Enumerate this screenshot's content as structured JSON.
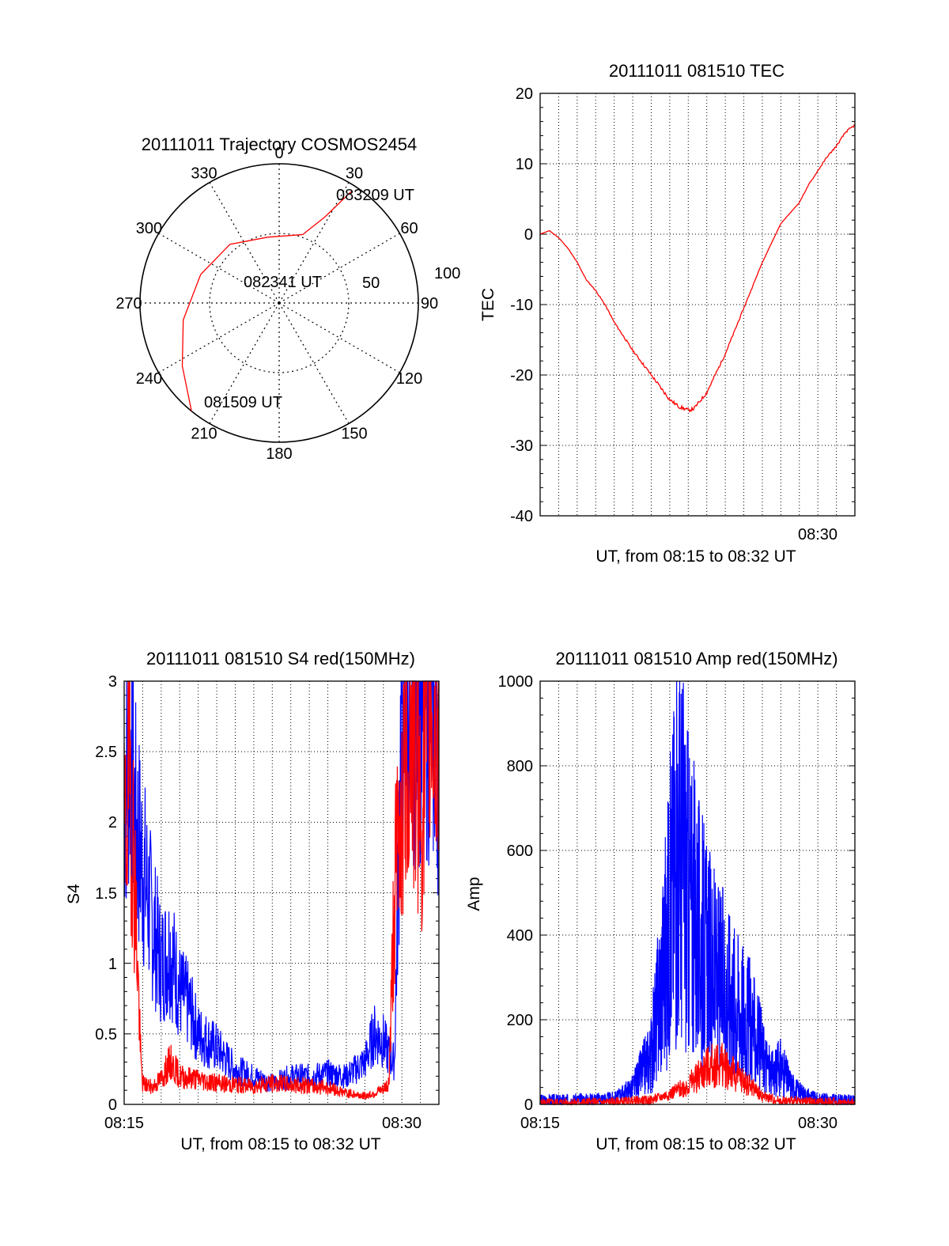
{
  "colors": {
    "red": "#ff0000",
    "blue": "#0000ff",
    "axis": "#000000",
    "grid": "#000000"
  },
  "trajectory": {
    "title": "20111011 Trajectory COSMOS2454",
    "azimuth_labels": [
      "0",
      "30",
      "60",
      "90",
      "120",
      "150",
      "180",
      "210",
      "240",
      "270",
      "300",
      "330"
    ],
    "elevation_labels": [
      "50",
      "100"
    ],
    "times": [
      "083209 UT",
      "082341 UT",
      "081509 UT"
    ],
    "chart_data": {
      "type": "scatter",
      "coordinates": "polar (azimuth degrees clockwise from north, radial distance in display units 0-100)",
      "series": [
        {
          "color": "red",
          "points": [
            {
              "az": 33,
              "r": 96
            },
            {
              "az": 28,
              "r": 70
            },
            {
              "az": 19,
              "r": 52
            },
            {
              "az": 350,
              "r": 48
            },
            {
              "az": 320,
              "r": 55
            },
            {
              "az": 290,
              "r": 60
            },
            {
              "az": 260,
              "r": 70
            },
            {
              "az": 237,
              "r": 83
            },
            {
              "az": 219,
              "r": 100
            }
          ]
        }
      ],
      "grid": true
    }
  },
  "tec": {
    "title": "20111011 081510 TEC",
    "ylabel": "TEC",
    "xlabel": "UT, from 08:15 to 08:32 UT",
    "yticks": [
      "20",
      "10",
      "0",
      "-10",
      "-20",
      "-30",
      "-40"
    ],
    "xtick_label": "08:30",
    "chart_data": {
      "type": "line",
      "xlim": [
        0,
        17
      ],
      "ylim": [
        -40,
        20
      ],
      "x_unit": "minutes after 08:15 UT",
      "grid": true,
      "series": [
        {
          "color": "red",
          "x": [
            0,
            0.5,
            1,
            1.5,
            2,
            2.5,
            3,
            3.5,
            4,
            5,
            6,
            7,
            7.5,
            8,
            8.3,
            9,
            10,
            11,
            12,
            13,
            14,
            14.5,
            15,
            15.5,
            16,
            16.5,
            17
          ],
          "y": [
            0,
            0.5,
            -0.5,
            -2,
            -4,
            -6.5,
            -8,
            -10,
            -12.5,
            -16.5,
            -20,
            -23.5,
            -24.5,
            -25,
            -24.8,
            -22.5,
            -17,
            -10.5,
            -4,
            1.5,
            4.5,
            7,
            9,
            11,
            12.5,
            14.5,
            15.5
          ]
        }
      ]
    }
  },
  "s4": {
    "title": "20111011 081510 S4 red(150MHz)",
    "ylabel": "S4",
    "xlabel": "UT, from 08:15 to 08:32 UT",
    "yticks": [
      "3",
      "2.5",
      "2",
      "1.5",
      "1",
      "0.5",
      "0"
    ],
    "xtick_labels": [
      "08:15",
      "08:30"
    ],
    "chart_data": {
      "type": "line",
      "xlim": [
        0,
        17
      ],
      "ylim": [
        0,
        3
      ],
      "x_unit": "minutes after 08:15 UT",
      "grid": true,
      "series": [
        {
          "color": "blue",
          "x": [
            0,
            0.3,
            0.6,
            1,
            1.5,
            2,
            2.5,
            3,
            3.5,
            4,
            5,
            6,
            7,
            8,
            9,
            10,
            11,
            12,
            13,
            13.5,
            14,
            14.3,
            14.6,
            15,
            15.5,
            16,
            16.5,
            17
          ],
          "y": [
            2.2,
            2.6,
            2.0,
            1.7,
            1.3,
            1.0,
            1.1,
            0.8,
            0.7,
            0.5,
            0.4,
            0.25,
            0.2,
            0.15,
            0.2,
            0.2,
            0.22,
            0.2,
            0.3,
            0.5,
            0.45,
            0.35,
            0.3,
            3.0,
            3.0,
            3.0,
            3.0,
            2.6
          ]
        },
        {
          "color": "red",
          "x": [
            0,
            0.3,
            0.6,
            0.9,
            1,
            1.5,
            2,
            2.5,
            3,
            4,
            5,
            6,
            7,
            8,
            9,
            10,
            11,
            12,
            13,
            14,
            14.3,
            14.6,
            15,
            15.5,
            16,
            16.5,
            17
          ],
          "y": [
            1.8,
            2.4,
            1.5,
            0.3,
            0.15,
            0.12,
            0.18,
            0.3,
            0.2,
            0.18,
            0.15,
            0.14,
            0.13,
            0.15,
            0.14,
            0.13,
            0.12,
            0.08,
            0.06,
            0.1,
            0.15,
            1.5,
            2.2,
            2.8,
            2.0,
            3.0,
            2.5
          ]
        }
      ]
    }
  },
  "amp": {
    "title": "20111011 081510 Amp red(150MHz)",
    "ylabel": "Amp",
    "xlabel": "UT, from 08:15 to 08:32 UT",
    "yticks": [
      "1000",
      "800",
      "600",
      "400",
      "200",
      "0"
    ],
    "xtick_labels": [
      "08:15",
      "08:30"
    ],
    "chart_data": {
      "type": "line",
      "xlim": [
        0,
        17
      ],
      "ylim": [
        0,
        1000
      ],
      "x_unit": "minutes after 08:15 UT",
      "grid": true,
      "series": [
        {
          "color": "blue",
          "x": [
            0,
            2,
            4,
            5,
            6,
            6.5,
            7,
            7.3,
            7.6,
            8,
            8.5,
            9,
            9.5,
            10,
            10.5,
            11,
            11.5,
            12,
            12.5,
            13,
            13.5,
            14,
            15,
            17
          ],
          "y": [
            8,
            10,
            15,
            40,
            120,
            280,
            450,
            600,
            620,
            500,
            420,
            350,
            300,
            280,
            250,
            220,
            180,
            120,
            70,
            90,
            50,
            30,
            12,
            6
          ]
        },
        {
          "color": "red",
          "x": [
            0,
            4,
            6,
            7,
            8,
            8.5,
            9,
            9.5,
            10,
            10.5,
            11,
            11.5,
            12,
            13,
            17
          ],
          "y": [
            3,
            5,
            10,
            25,
            45,
            65,
            85,
            95,
            90,
            70,
            55,
            40,
            20,
            8,
            3
          ]
        }
      ]
    }
  }
}
